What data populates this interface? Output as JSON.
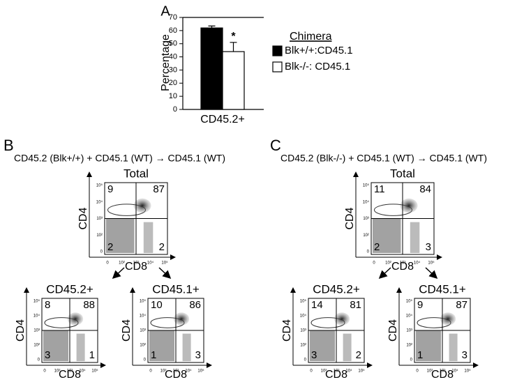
{
  "chart_data": {
    "type": "bar",
    "panel_label": "A",
    "ylabel": "Percentage",
    "categories": [
      "CD45.2+"
    ],
    "series": [
      {
        "name": "Blk+/+:CD45.1",
        "color": "#000000",
        "values": [
          62
        ],
        "errors": [
          1.5
        ]
      },
      {
        "name": "Blk-/-: CD45.1",
        "color": "#ffffff",
        "values": [
          44
        ],
        "errors": [
          7
        ]
      }
    ],
    "legend_title": "Chimera",
    "annotation": "*",
    "ylim": [
      0,
      70
    ],
    "yticks": [
      0,
      10,
      20,
      30,
      40,
      50,
      60,
      70
    ]
  },
  "panels": [
    {
      "label": "B",
      "title": "CD45.2 (Blk+/+) + CD45.1 (WT) → CD45.1 (WT)",
      "plots": [
        {
          "title": "Total",
          "quadrants": [
            9,
            87,
            2,
            2
          ]
        },
        {
          "title": "CD45.2+",
          "quadrants": [
            8,
            88,
            3,
            1
          ]
        },
        {
          "title": "CD45.1+",
          "quadrants": [
            10,
            86,
            1,
            3
          ]
        }
      ]
    },
    {
      "label": "C",
      "title": "CD45.2 (Blk-/-) + CD45.1 (WT) → CD45.1 (WT)",
      "plots": [
        {
          "title": "Total",
          "quadrants": [
            11,
            84,
            2,
            3
          ]
        },
        {
          "title": "CD45.2+",
          "quadrants": [
            14,
            81,
            3,
            2
          ]
        },
        {
          "title": "CD45.1+",
          "quadrants": [
            9,
            87,
            1,
            3
          ]
        }
      ]
    }
  ],
  "flow_axes": {
    "y": "CD4",
    "x": "CD8",
    "ticks": [
      "0",
      "10²",
      "10³",
      "10⁴",
      "10⁵"
    ]
  }
}
